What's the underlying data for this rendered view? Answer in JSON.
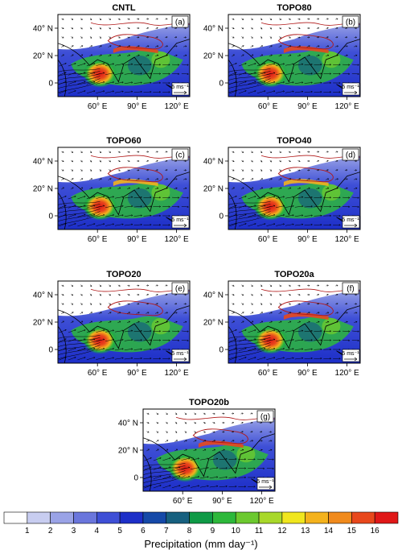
{
  "chart_data": {
    "type": "heatmap",
    "panels": [
      {
        "title": "CNTL",
        "label": "(a)"
      },
      {
        "title": "TOPO80",
        "label": "(b)"
      },
      {
        "title": "TOPO60",
        "label": "(c)"
      },
      {
        "title": "TOPO40",
        "label": "(d)"
      },
      {
        "title": "TOPO20",
        "label": "(e)"
      },
      {
        "title": "TOPO20a",
        "label": "(f)"
      },
      {
        "title": "TOPO20b",
        "label": "(g)"
      }
    ],
    "x_ticks": [
      "60° E",
      "90° E",
      "120° E"
    ],
    "y_ticks": [
      "40° N",
      "20° N",
      "0"
    ],
    "x_tick_values": [
      60,
      90,
      120
    ],
    "y_tick_values": [
      40,
      20,
      0
    ],
    "xlim": [
      30,
      130
    ],
    "ylim": [
      -10,
      50
    ],
    "vector_reference": "5 ms⁻¹",
    "colorbar": {
      "label": "Precipitation (mm day⁻¹)",
      "tick_labels": [
        "1",
        "2",
        "3",
        "4",
        "5",
        "6",
        "7",
        "8",
        "9",
        "10",
        "11",
        "12",
        "13",
        "14",
        "15",
        "16"
      ],
      "colors": [
        "#ffffff",
        "#c8cdf0",
        "#9aa3e6",
        "#6a76dc",
        "#3e4fd6",
        "#1d2fc8",
        "#1549a8",
        "#17607f",
        "#0f9a46",
        "#2db83b",
        "#6cc92f",
        "#a8d82a",
        "#f0e61e",
        "#f4b21c",
        "#f08a1c",
        "#e8481c",
        "#e01818"
      ]
    }
  }
}
